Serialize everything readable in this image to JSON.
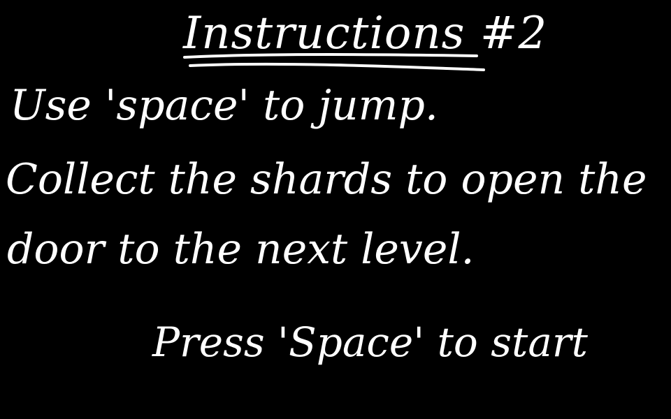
{
  "screen": {
    "title": "Instructions #2",
    "lines": [
      "Use 'space' to jump.",
      "Collect the shards to open the",
      "door to the next level."
    ],
    "prompt": "Press 'Space' to start"
  },
  "colors": {
    "background": "#000000",
    "text": "#ffffff"
  }
}
